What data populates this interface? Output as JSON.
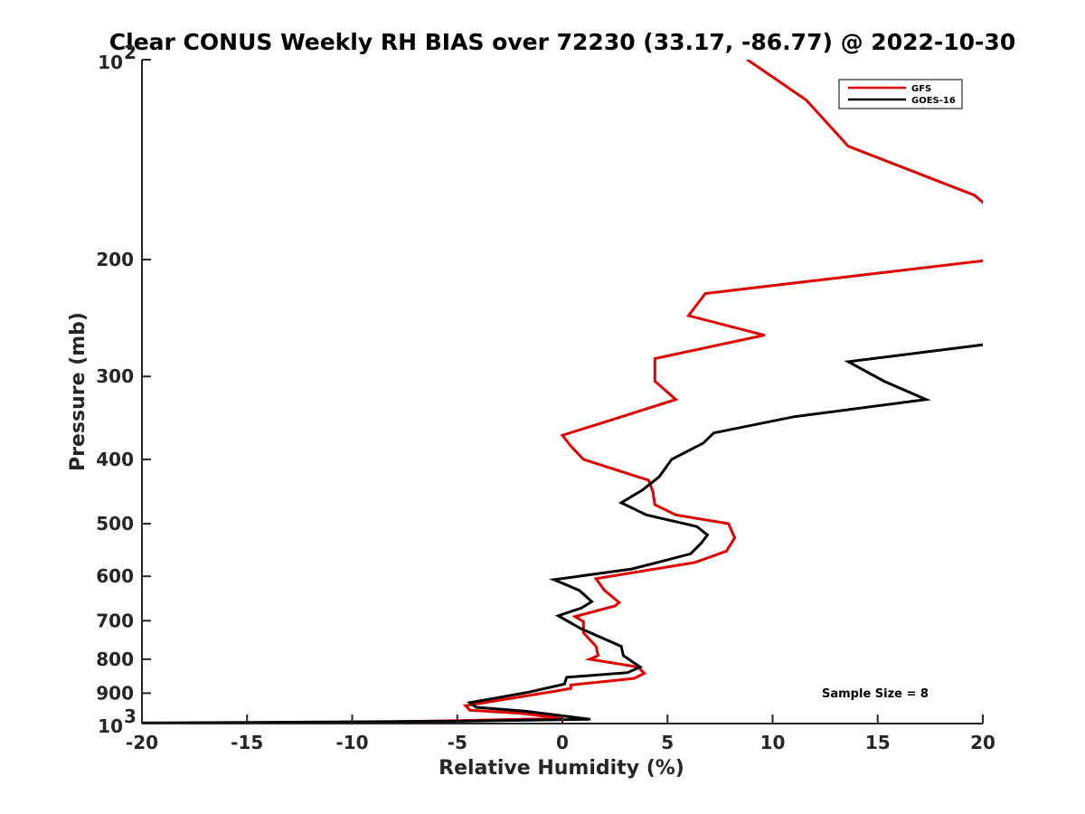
{
  "chart_data": {
    "type": "line",
    "title": "Clear CONUS Weekly RH BIAS over 72230 (33.17, -86.77) @ 2022-10-30",
    "xlabel": "Relative Humidity (%)",
    "ylabel": "Pressure (mb)",
    "xlim": [
      -20,
      20
    ],
    "ylim": [
      100,
      1000
    ],
    "y_scale": "log",
    "y_reversed": true,
    "x_ticks": [
      "-20",
      "-15",
      "-10",
      "-5",
      "0",
      "5",
      "10",
      "15",
      "20"
    ],
    "y_ticks": [
      {
        "value": 100,
        "base": "10",
        "exp": "2"
      },
      {
        "value": 200,
        "label": "200"
      },
      {
        "value": 300,
        "label": "300"
      },
      {
        "value": 400,
        "label": "400"
      },
      {
        "value": 500,
        "label": "500"
      },
      {
        "value": 600,
        "label": "600"
      },
      {
        "value": 700,
        "label": "700"
      },
      {
        "value": 800,
        "label": "800"
      },
      {
        "value": 900,
        "label": "900"
      },
      {
        "value": 1000,
        "base": "10",
        "exp": "3"
      }
    ],
    "grid": false,
    "legend_position": "top-right",
    "annotation": "Sample Size = 8",
    "series": [
      {
        "name": "GFS",
        "color": "#e00000",
        "points": [
          [
            8.8,
            100
          ],
          [
            11.6,
            115
          ],
          [
            13.6,
            135
          ],
          [
            19.6,
            160
          ],
          [
            20.3,
            167
          ],
          [
            20.5,
            200
          ],
          [
            6.8,
            225
          ],
          [
            6.0,
            243
          ],
          [
            9.6,
            260
          ],
          [
            4.4,
            282
          ],
          [
            4.4,
            305
          ],
          [
            5.4,
            325
          ],
          [
            2.2,
            350
          ],
          [
            0.0,
            368
          ],
          [
            0.4,
            382
          ],
          [
            1.0,
            400
          ],
          [
            4.1,
            430
          ],
          [
            4.3,
            447
          ],
          [
            4.4,
            468
          ],
          [
            5.4,
            485
          ],
          [
            7.9,
            500
          ],
          [
            8.2,
            525
          ],
          [
            7.8,
            550
          ],
          [
            6.3,
            572
          ],
          [
            1.6,
            605
          ],
          [
            2.0,
            630
          ],
          [
            2.7,
            657
          ],
          [
            2.5,
            665
          ],
          [
            0.6,
            690
          ],
          [
            1.0,
            702
          ],
          [
            1.0,
            730
          ],
          [
            1.6,
            765
          ],
          [
            1.7,
            790
          ],
          [
            1.3,
            800
          ],
          [
            3.6,
            822
          ],
          [
            3.9,
            840
          ],
          [
            3.4,
            855
          ],
          [
            0.4,
            875
          ],
          [
            0.4,
            885
          ],
          [
            -0.2,
            892
          ],
          [
            -4.6,
            940
          ],
          [
            -4.4,
            955
          ],
          [
            -2.0,
            965
          ],
          [
            0.0,
            982
          ],
          [
            -5.0,
            990
          ],
          [
            -15.0,
            1002
          ]
        ]
      },
      {
        "name": "GOES-16",
        "color": "#000000",
        "points": [
          [
            20.3,
            268
          ],
          [
            13.6,
            285
          ],
          [
            15.3,
            305
          ],
          [
            17.3,
            325
          ],
          [
            11.0,
            345
          ],
          [
            7.2,
            365
          ],
          [
            6.7,
            378
          ],
          [
            5.2,
            400
          ],
          [
            4.6,
            425
          ],
          [
            3.8,
            445
          ],
          [
            2.8,
            465
          ],
          [
            4.0,
            485
          ],
          [
            6.4,
            505
          ],
          [
            6.9,
            520
          ],
          [
            6.6,
            535
          ],
          [
            6.1,
            555
          ],
          [
            4.7,
            570
          ],
          [
            3.3,
            585
          ],
          [
            -0.4,
            607
          ],
          [
            0.8,
            630
          ],
          [
            1.4,
            655
          ],
          [
            0.9,
            670
          ],
          [
            -0.2,
            688
          ],
          [
            0.9,
            720
          ],
          [
            2.8,
            765
          ],
          [
            2.9,
            790
          ],
          [
            3.7,
            822
          ],
          [
            3.1,
            838
          ],
          [
            0.2,
            852
          ],
          [
            0.1,
            872
          ],
          [
            -1.6,
            897
          ],
          [
            -4.4,
            930
          ],
          [
            -4.1,
            945
          ],
          [
            -1.8,
            958
          ],
          [
            -0.2,
            972
          ],
          [
            1.3,
            985
          ],
          [
            -4.8,
            992
          ],
          [
            -20.0,
            998
          ]
        ]
      }
    ]
  }
}
